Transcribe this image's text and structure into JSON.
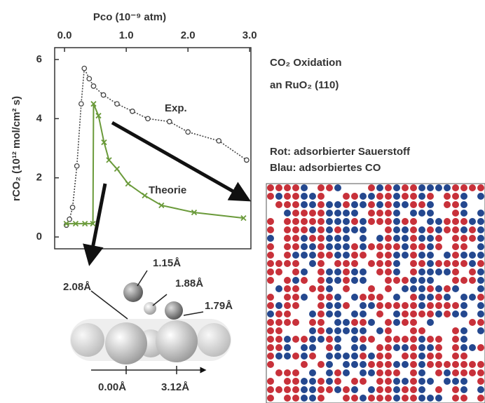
{
  "chart_data": {
    "type": "line",
    "x_label": "Pco (10⁻⁹ atm)",
    "y_label": "rCO₂ (10¹² mol/cm² s)",
    "xlim": [
      -0.16,
      3.02
    ],
    "xticks": [
      {
        "value": 0,
        "label": "0.0"
      },
      {
        "value": 1,
        "label": "1.0"
      },
      {
        "value": 2,
        "label": "2.0"
      },
      {
        "value": 3,
        "label": "3.0"
      }
    ],
    "ylim": [
      -0.4,
      6.4
    ],
    "yticks": [
      0,
      2,
      4,
      6
    ],
    "series": [
      {
        "name": "Exp.",
        "color": "#444444",
        "marker": "circle",
        "dashed": true,
        "x": [
          0.03,
          0.08,
          0.13,
          0.2,
          0.27,
          0.32,
          0.4,
          0.47,
          0.63,
          0.85,
          1.1,
          1.35,
          1.7,
          2.0,
          2.5,
          2.95
        ],
        "values": [
          0.4,
          0.6,
          1.0,
          2.4,
          4.5,
          5.7,
          5.35,
          5.1,
          4.8,
          4.5,
          4.25,
          4.0,
          3.9,
          3.55,
          3.25,
          2.6
        ]
      },
      {
        "name": "Theorie",
        "color": "#6a9a3a",
        "marker": "x",
        "dashed": false,
        "x": [
          0.03,
          0.18,
          0.33,
          0.46,
          0.47,
          0.55,
          0.64,
          0.72,
          0.85,
          1.03,
          1.3,
          1.57,
          2.1,
          2.9
        ],
        "values": [
          0.45,
          0.45,
          0.45,
          0.45,
          4.5,
          4.1,
          3.2,
          2.6,
          2.3,
          1.8,
          1.4,
          1.07,
          0.83,
          0.64
        ]
      }
    ]
  },
  "annotations": {
    "system_line1": "CO₂ Oxidation",
    "system_line2": "an RuO₂   (110)",
    "legend_red": "Rot: adsorbierter Sauerstoff",
    "legend_blue": "Blau: adsorbiertes CO",
    "distances": [
      "1.15Å",
      "2.08Å",
      "1.88Å",
      "1.79Å"
    ],
    "axis_positions": [
      "0.00Å",
      "3.12Å"
    ]
  }
}
